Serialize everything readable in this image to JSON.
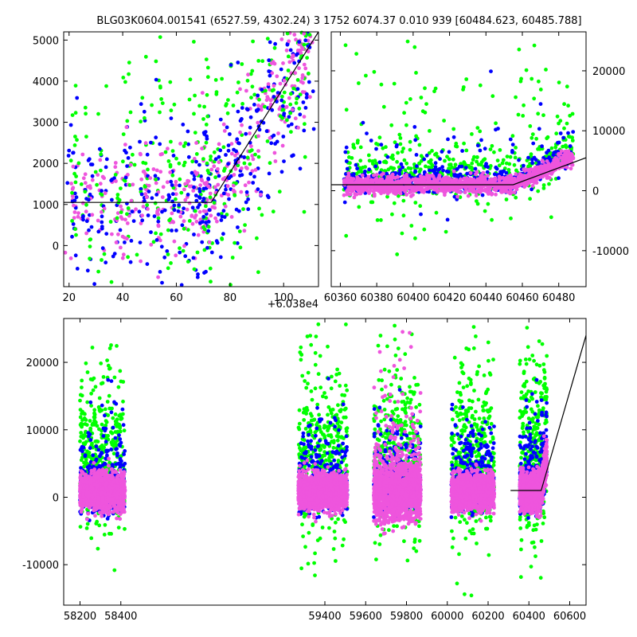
{
  "figure": {
    "title": "BLG03K0604.001541 (6527.59, 4302.24)    3 1752 6074.37 0.010 939 [60484.623, 60485.788]",
    "offset_label": "+6.038e4"
  },
  "colors": {
    "green": "#00ff00",
    "blue": "#0000ff",
    "pink": "#ee55dd",
    "line": "#000000"
  },
  "chart_data": [
    {
      "name": "zoom-peak-panel",
      "type": "scatter",
      "xlabel": "",
      "ylabel": "",
      "xlim": [
        18,
        113
      ],
      "ylim": [
        -1000,
        5200
      ],
      "x_offset": 60380,
      "xticks": [
        20,
        40,
        60,
        80,
        100
      ],
      "yticks": [
        0,
        1000,
        2000,
        3000,
        4000,
        5000
      ],
      "grid": false,
      "series_colors": [
        "green",
        "blue",
        "pink"
      ],
      "model": {
        "x": [
          18,
          73,
          113
        ],
        "y": [
          1050,
          1050,
          5200
        ]
      }
    },
    {
      "name": "season-panel",
      "type": "scatter",
      "xlabel": "",
      "ylabel": "",
      "xlim": [
        60355,
        60495
      ],
      "ylim": [
        -16000,
        26500
      ],
      "xticks": [
        60360,
        60380,
        60400,
        60420,
        60440,
        60460,
        60480
      ],
      "yticks": [
        -10000,
        0,
        10000,
        20000
      ],
      "ytick_side": "right",
      "grid": false,
      "series_colors": [
        "green",
        "blue",
        "pink"
      ],
      "model": {
        "x": [
          60355,
          60455,
          60495
        ],
        "y": [
          1000,
          1000,
          5500
        ]
      }
    },
    {
      "name": "full-lightcurve-panel",
      "type": "scatter",
      "xlabel": "",
      "ylabel": "",
      "xlim": [
        58120,
        60680
      ],
      "ylim": [
        -16000,
        26500
      ],
      "xticks": [
        58200,
        58400,
        59400,
        59600,
        59800,
        60000,
        60200,
        60400,
        60600
      ],
      "yticks": [
        -10000,
        0,
        10000,
        20000
      ],
      "broken_axis_gap": [
        58440,
        59260
      ],
      "seasons": [
        [
          58200,
          58420
        ],
        [
          59270,
          59510
        ],
        [
          59640,
          59870
        ],
        [
          60020,
          60230
        ],
        [
          60355,
          60488
        ]
      ],
      "grid": false,
      "series_colors": [
        "green",
        "blue",
        "pink"
      ],
      "model": {
        "x": [
          60310,
          60460,
          60680
        ],
        "y": [
          1000,
          1000,
          24000
        ]
      }
    }
  ]
}
